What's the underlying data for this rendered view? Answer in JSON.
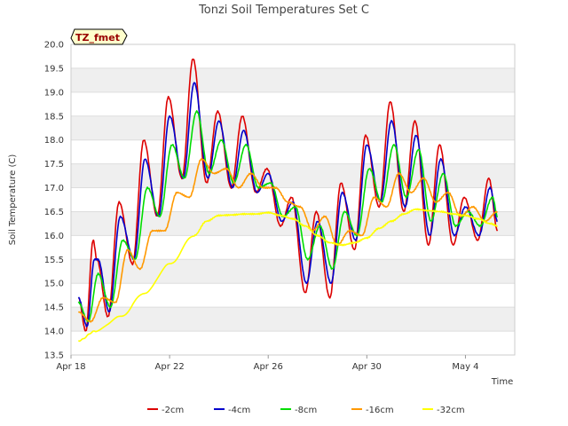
{
  "chart_data": {
    "type": "line",
    "title": "Tonzi Soil Temperatures Set C",
    "xlabel": "Time",
    "ylabel": "Soil Temperature (C)",
    "annotation": "TZ_fmet",
    "x_unit": "days since Apr 18",
    "xlim": [
      0,
      18
    ],
    "ylim": [
      13.5,
      20.0
    ],
    "x_ticks": [
      {
        "x": 0,
        "label": "Apr 18"
      },
      {
        "x": 4,
        "label": "Apr 22"
      },
      {
        "x": 8,
        "label": "Apr 26"
      },
      {
        "x": 12,
        "label": "Apr 30"
      },
      {
        "x": 16,
        "label": "May 4"
      }
    ],
    "y_ticks": [
      "13.5",
      "14.0",
      "14.5",
      "15.0",
      "15.5",
      "16.0",
      "16.5",
      "17.0",
      "17.5",
      "18.0",
      "18.5",
      "19.0",
      "19.5",
      "20.0"
    ],
    "legend_position": "bottom",
    "series": [
      {
        "name": "-2cm",
        "color": "#dd0000",
        "x": [
          0.3,
          0.6,
          0.9,
          1.05,
          1.5,
          1.95,
          2.5,
          2.95,
          3.5,
          3.95,
          4.5,
          4.95,
          5.5,
          5.95,
          6.5,
          6.95,
          7.5,
          7.95,
          8.5,
          8.95,
          9.5,
          9.95,
          10.5,
          10.95,
          11.5,
          11.95,
          12.5,
          12.95,
          13.5,
          13.95,
          14.5,
          14.95,
          15.5,
          15.95,
          16.5,
          16.95,
          17.3
        ],
        "values": [
          14.7,
          14.0,
          15.9,
          15.5,
          14.3,
          16.7,
          15.4,
          18.0,
          16.4,
          18.9,
          17.2,
          19.7,
          17.1,
          18.6,
          17.0,
          18.5,
          16.9,
          17.4,
          16.2,
          16.8,
          14.8,
          16.5,
          14.7,
          17.1,
          15.7,
          18.1,
          16.6,
          18.8,
          16.5,
          18.4,
          15.8,
          17.9,
          15.8,
          16.8,
          15.9,
          17.2,
          16.1
        ]
      },
      {
        "name": "-4cm",
        "color": "#0000cc",
        "x": [
          0.3,
          0.65,
          0.95,
          1.1,
          1.55,
          2.0,
          2.55,
          3.0,
          3.55,
          4.0,
          4.55,
          5.0,
          5.55,
          6.0,
          6.55,
          7.0,
          7.55,
          8.0,
          8.55,
          9.0,
          9.55,
          10.0,
          10.55,
          11.0,
          11.55,
          12.0,
          12.55,
          13.0,
          13.55,
          14.0,
          14.55,
          15.0,
          15.55,
          16.0,
          16.55,
          17.0,
          17.3
        ],
        "values": [
          14.7,
          14.1,
          15.5,
          15.5,
          14.4,
          16.4,
          15.5,
          17.6,
          16.4,
          18.5,
          17.2,
          19.2,
          17.2,
          18.4,
          17.0,
          18.2,
          16.9,
          17.3,
          16.3,
          16.7,
          15.0,
          16.3,
          15.0,
          16.9,
          15.9,
          17.9,
          16.7,
          18.4,
          16.6,
          18.1,
          16.0,
          17.6,
          16.0,
          16.6,
          16.0,
          17.0,
          16.3
        ]
      },
      {
        "name": "-8cm",
        "color": "#00dd00",
        "x": [
          0.3,
          0.7,
          1.1,
          1.6,
          2.1,
          2.6,
          3.1,
          3.6,
          4.1,
          4.6,
          5.1,
          5.6,
          6.1,
          6.6,
          7.1,
          7.6,
          8.1,
          8.6,
          9.1,
          9.6,
          10.1,
          10.6,
          11.1,
          11.6,
          12.1,
          12.6,
          13.1,
          13.6,
          14.1,
          14.6,
          15.1,
          15.6,
          16.1,
          16.6,
          17.1,
          17.3
        ],
        "values": [
          14.6,
          14.2,
          15.2,
          14.5,
          15.9,
          15.5,
          17.0,
          16.4,
          17.9,
          17.2,
          18.6,
          17.3,
          18.0,
          17.1,
          17.9,
          17.0,
          17.1,
          16.4,
          16.6,
          15.5,
          16.2,
          15.3,
          16.5,
          16.0,
          17.4,
          16.7,
          17.9,
          16.8,
          17.8,
          16.3,
          17.3,
          16.2,
          16.5,
          16.2,
          16.8,
          16.4
        ]
      },
      {
        "name": "-16cm",
        "color": "#ff9900",
        "x": [
          0.3,
          0.8,
          1.3,
          1.8,
          2.3,
          2.8,
          3.3,
          3.8,
          4.3,
          4.8,
          5.3,
          5.8,
          6.3,
          6.8,
          7.3,
          7.8,
          8.3,
          8.8,
          9.3,
          9.8,
          10.3,
          10.8,
          11.3,
          11.8,
          12.3,
          12.8,
          13.3,
          13.8,
          14.3,
          14.8,
          15.3,
          15.8,
          16.3,
          16.8,
          17.3
        ],
        "values": [
          14.4,
          14.2,
          14.7,
          14.6,
          15.7,
          15.3,
          16.1,
          16.1,
          16.9,
          16.8,
          17.6,
          17.3,
          17.4,
          17.0,
          17.3,
          17.0,
          17.0,
          16.7,
          16.6,
          16.1,
          16.4,
          15.8,
          16.1,
          16.0,
          16.8,
          16.6,
          17.3,
          16.9,
          17.2,
          16.7,
          16.9,
          16.4,
          16.6,
          16.3,
          16.5
        ]
      },
      {
        "name": "-32cm",
        "color": "#ffff00",
        "x": [
          0.3,
          1.0,
          2.0,
          3.0,
          4.0,
          5.0,
          5.5,
          6.0,
          6.5,
          7.0,
          7.5,
          8.0,
          8.5,
          9.0,
          9.5,
          10.0,
          10.5,
          11.0,
          11.5,
          12.0,
          12.5,
          13.0,
          13.5,
          14.0,
          14.5,
          15.0,
          15.5,
          16.0,
          16.5,
          17.0,
          17.3
        ],
        "values": [
          13.8,
          14.0,
          14.3,
          14.8,
          15.4,
          16.0,
          16.3,
          16.42,
          16.43,
          16.45,
          16.45,
          16.48,
          16.42,
          16.35,
          16.2,
          16.0,
          15.85,
          15.8,
          15.85,
          15.95,
          16.15,
          16.3,
          16.45,
          16.55,
          16.52,
          16.5,
          16.45,
          16.42,
          16.35,
          16.25,
          16.2
        ]
      }
    ]
  }
}
